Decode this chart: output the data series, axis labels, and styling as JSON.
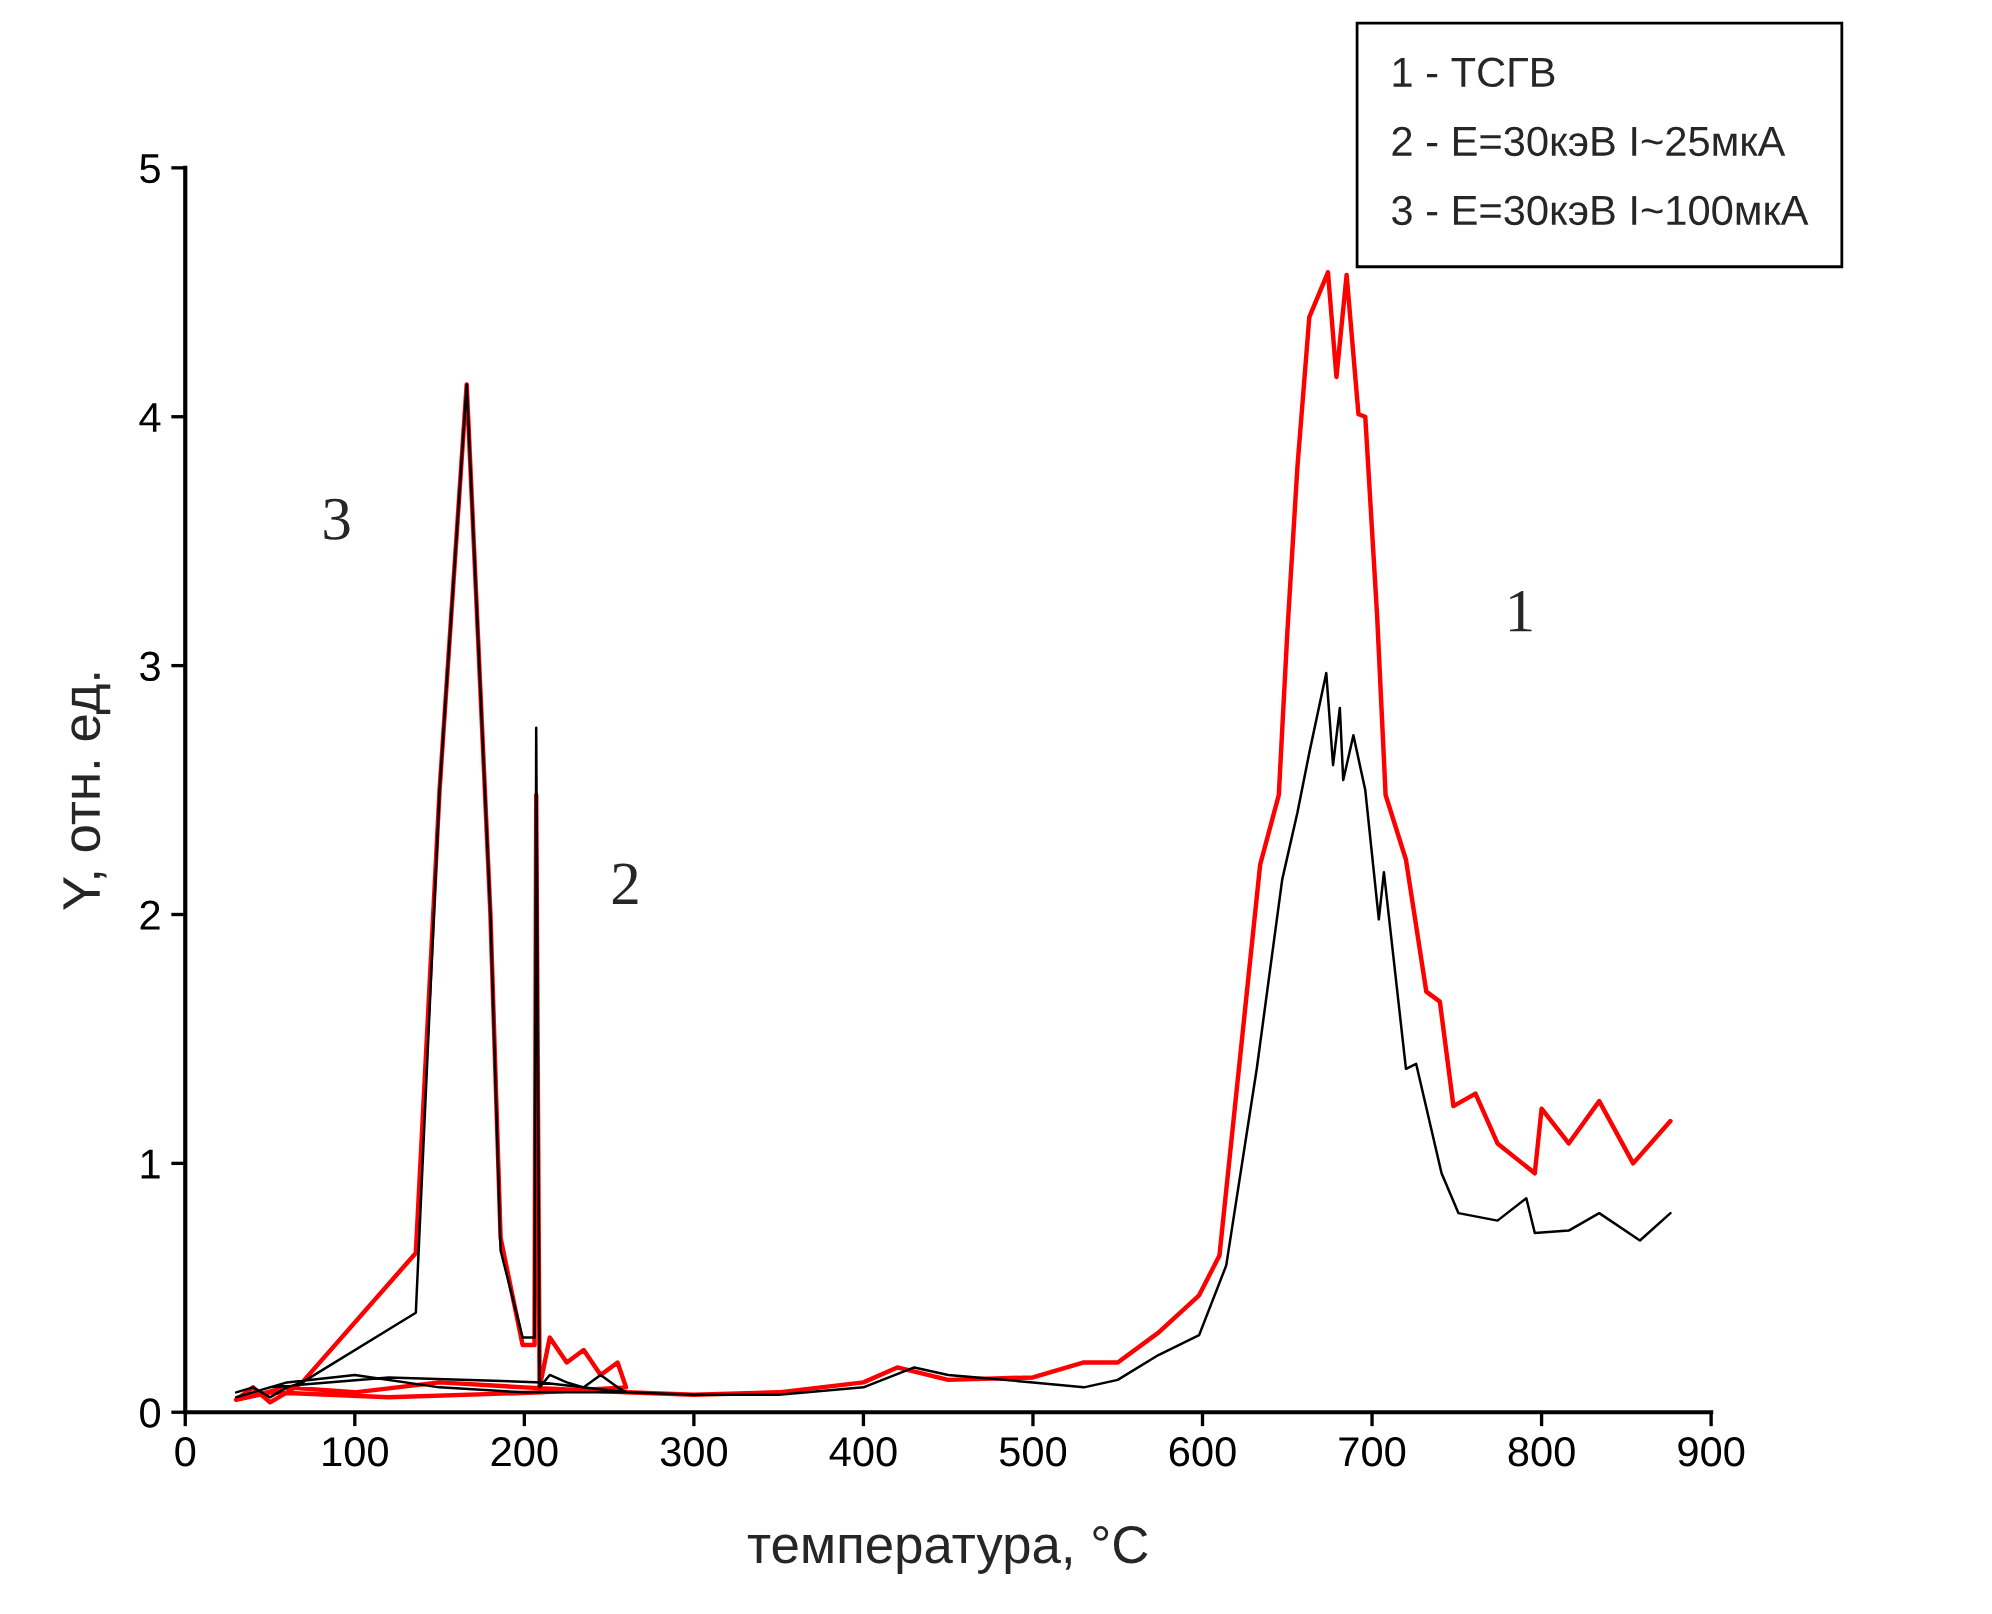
{
  "chart_data": {
    "type": "line",
    "xlabel": "температура, °C",
    "ylabel": "Y, отн. ед.",
    "xlim": [
      0,
      900
    ],
    "xticks": [
      0,
      100,
      200,
      300,
      400,
      500,
      600,
      700,
      800,
      900
    ],
    "ylim": [
      0,
      5
    ],
    "yticks": [
      0,
      1,
      2,
      3,
      4,
      5
    ],
    "grid": false,
    "legend": false,
    "marker": "none",
    "line_style": "solid",
    "series": [
      {
        "color": "#ff0000",
        "x": [
          30,
          40,
          50,
          60,
          69,
          136,
          150,
          166,
          180,
          186,
          199,
          206,
          207,
          209,
          215,
          225,
          235,
          245,
          255,
          260,
          210,
          120,
          50,
          30,
          60,
          100,
          150,
          200,
          260,
          300,
          350,
          400,
          420,
          450,
          500,
          530,
          550,
          574,
          598,
          610,
          634,
          645,
          650,
          656,
          663,
          674,
          679,
          685,
          692,
          696,
          703,
          708,
          720,
          732,
          740,
          748,
          761,
          774,
          796,
          800,
          816,
          834,
          854,
          876
        ],
        "values": [
          0.05,
          0.1,
          0.04,
          0.08,
          0.12,
          0.64,
          2.5,
          4.13,
          2.0,
          0.7,
          0.27,
          0.27,
          2.48,
          0.1,
          0.3,
          0.2,
          0.25,
          0.15,
          0.2,
          0.1,
          0.08,
          0.06,
          0.08,
          0.05,
          0.1,
          0.08,
          0.12,
          0.1,
          0.08,
          0.07,
          0.08,
          0.12,
          0.18,
          0.13,
          0.14,
          0.2,
          0.2,
          0.32,
          0.47,
          0.63,
          2.2,
          2.48,
          3.13,
          3.8,
          4.4,
          4.58,
          4.16,
          4.57,
          4.01,
          4.0,
          3.2,
          2.48,
          2.22,
          1.69,
          1.65,
          1.23,
          1.28,
          1.08,
          0.96,
          1.22,
          1.08,
          1.25,
          1.0,
          1.17
        ]
      },
      {
        "color": "#000000",
        "x": [
          30,
          40,
          50,
          60,
          69,
          136,
          150,
          166,
          180,
          186,
          199,
          206,
          207,
          209,
          215,
          225,
          235,
          245,
          255,
          260,
          210,
          120,
          50,
          30,
          60,
          100,
          150,
          200,
          260,
          300,
          350,
          400,
          430,
          450,
          500,
          530,
          550,
          574,
          598,
          614,
          632,
          647,
          656,
          663,
          673,
          677,
          681,
          683,
          689,
          696,
          704,
          707,
          720,
          726,
          741,
          751,
          774,
          791,
          796,
          816,
          834,
          858,
          876
        ],
        "values": [
          0.08,
          0.1,
          0.06,
          0.1,
          0.12,
          0.4,
          2.5,
          4.13,
          2.0,
          0.65,
          0.3,
          0.3,
          2.75,
          0.1,
          0.15,
          0.12,
          0.1,
          0.15,
          0.1,
          0.08,
          0.12,
          0.14,
          0.1,
          0.06,
          0.12,
          0.15,
          0.1,
          0.08,
          0.08,
          0.07,
          0.07,
          0.1,
          0.18,
          0.15,
          0.12,
          0.1,
          0.13,
          0.23,
          0.31,
          0.59,
          1.38,
          2.14,
          2.41,
          2.65,
          2.97,
          2.6,
          2.83,
          2.54,
          2.72,
          2.5,
          1.98,
          2.17,
          1.38,
          1.4,
          0.96,
          0.8,
          0.77,
          0.86,
          0.72,
          0.73,
          0.8,
          0.69,
          0.8
        ]
      }
    ],
    "annotations": [
      "1",
      "2",
      "3",
      "1 - ТСГВ",
      "2 - E=30кэВ I~25мкА",
      "3 - E=30кэВ I~100мкА"
    ]
  }
}
